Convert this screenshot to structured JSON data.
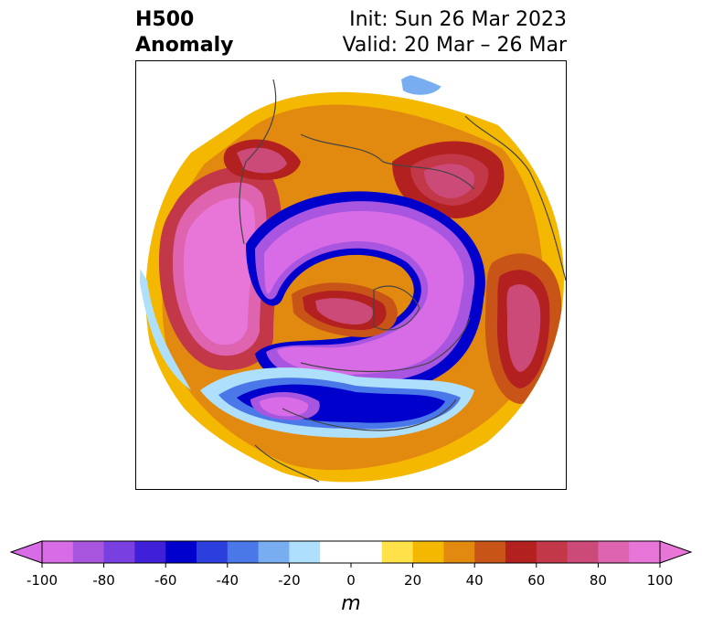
{
  "title": {
    "left_line1": "H500",
    "left_line2": "Anomaly",
    "right_line1": "Init: Sun 26 Mar 2023",
    "right_line2": "Valid: 20 Mar – 26 Mar"
  },
  "colorbar": {
    "unit": "m",
    "ticks": [
      "-100",
      "-80",
      "-60",
      "-40",
      "-20",
      "0",
      "20",
      "40",
      "60",
      "80",
      "100"
    ],
    "min": -100,
    "max": 100,
    "step": 10,
    "colors": [
      "#d86be6",
      "#a855e0",
      "#7a3fe0",
      "#3f1fd8",
      "#0000cc",
      "#2a3fdc",
      "#4a78e8",
      "#78aef0",
      "#aee0fb",
      "#ffffff",
      "#ffffff",
      "#ffe24a",
      "#f5b800",
      "#e28a10",
      "#c85418",
      "#b32020",
      "#c23848",
      "#cc4a78",
      "#de64b0",
      "#e876d8"
    ],
    "extend_low_color": "#d86be6",
    "extend_high_color": "#e876d8"
  }
}
